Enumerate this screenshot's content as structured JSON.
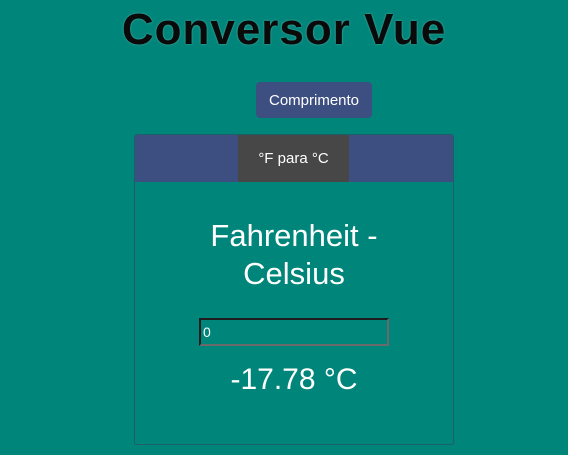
{
  "app": {
    "title": "Conversor Vue"
  },
  "mode_button": {
    "label": "Comprimento"
  },
  "tabs": [
    {
      "label": "°F para °C",
      "active": true
    }
  ],
  "converter": {
    "title_line1": "Fahrenheit -",
    "title_line2": "Celsius",
    "input_value": "0",
    "result": "-17.78 °C"
  },
  "colors": {
    "background": "#00857a",
    "tab_bar": "#3d4f80",
    "active_tab": "#474747",
    "button": "#3d4f80"
  }
}
